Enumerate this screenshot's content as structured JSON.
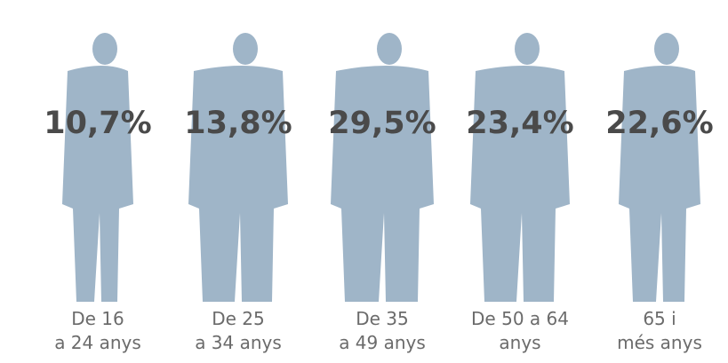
{
  "chart_data": {
    "type": "pictogram",
    "categories": [
      [
        "De 16",
        "a 24 anys"
      ],
      [
        "De 25",
        "a 34 anys"
      ],
      [
        "De 35",
        "a 49 anys"
      ],
      [
        "De 50 a 64",
        "anys"
      ],
      [
        "65 i",
        "més anys"
      ]
    ],
    "values": [
      10.7,
      13.8,
      29.5,
      23.4,
      22.6
    ],
    "value_labels": [
      "10,7%",
      "13,8%",
      "29,5%",
      "23,4%",
      "22,6%"
    ],
    "color": "#9fb5c8"
  }
}
